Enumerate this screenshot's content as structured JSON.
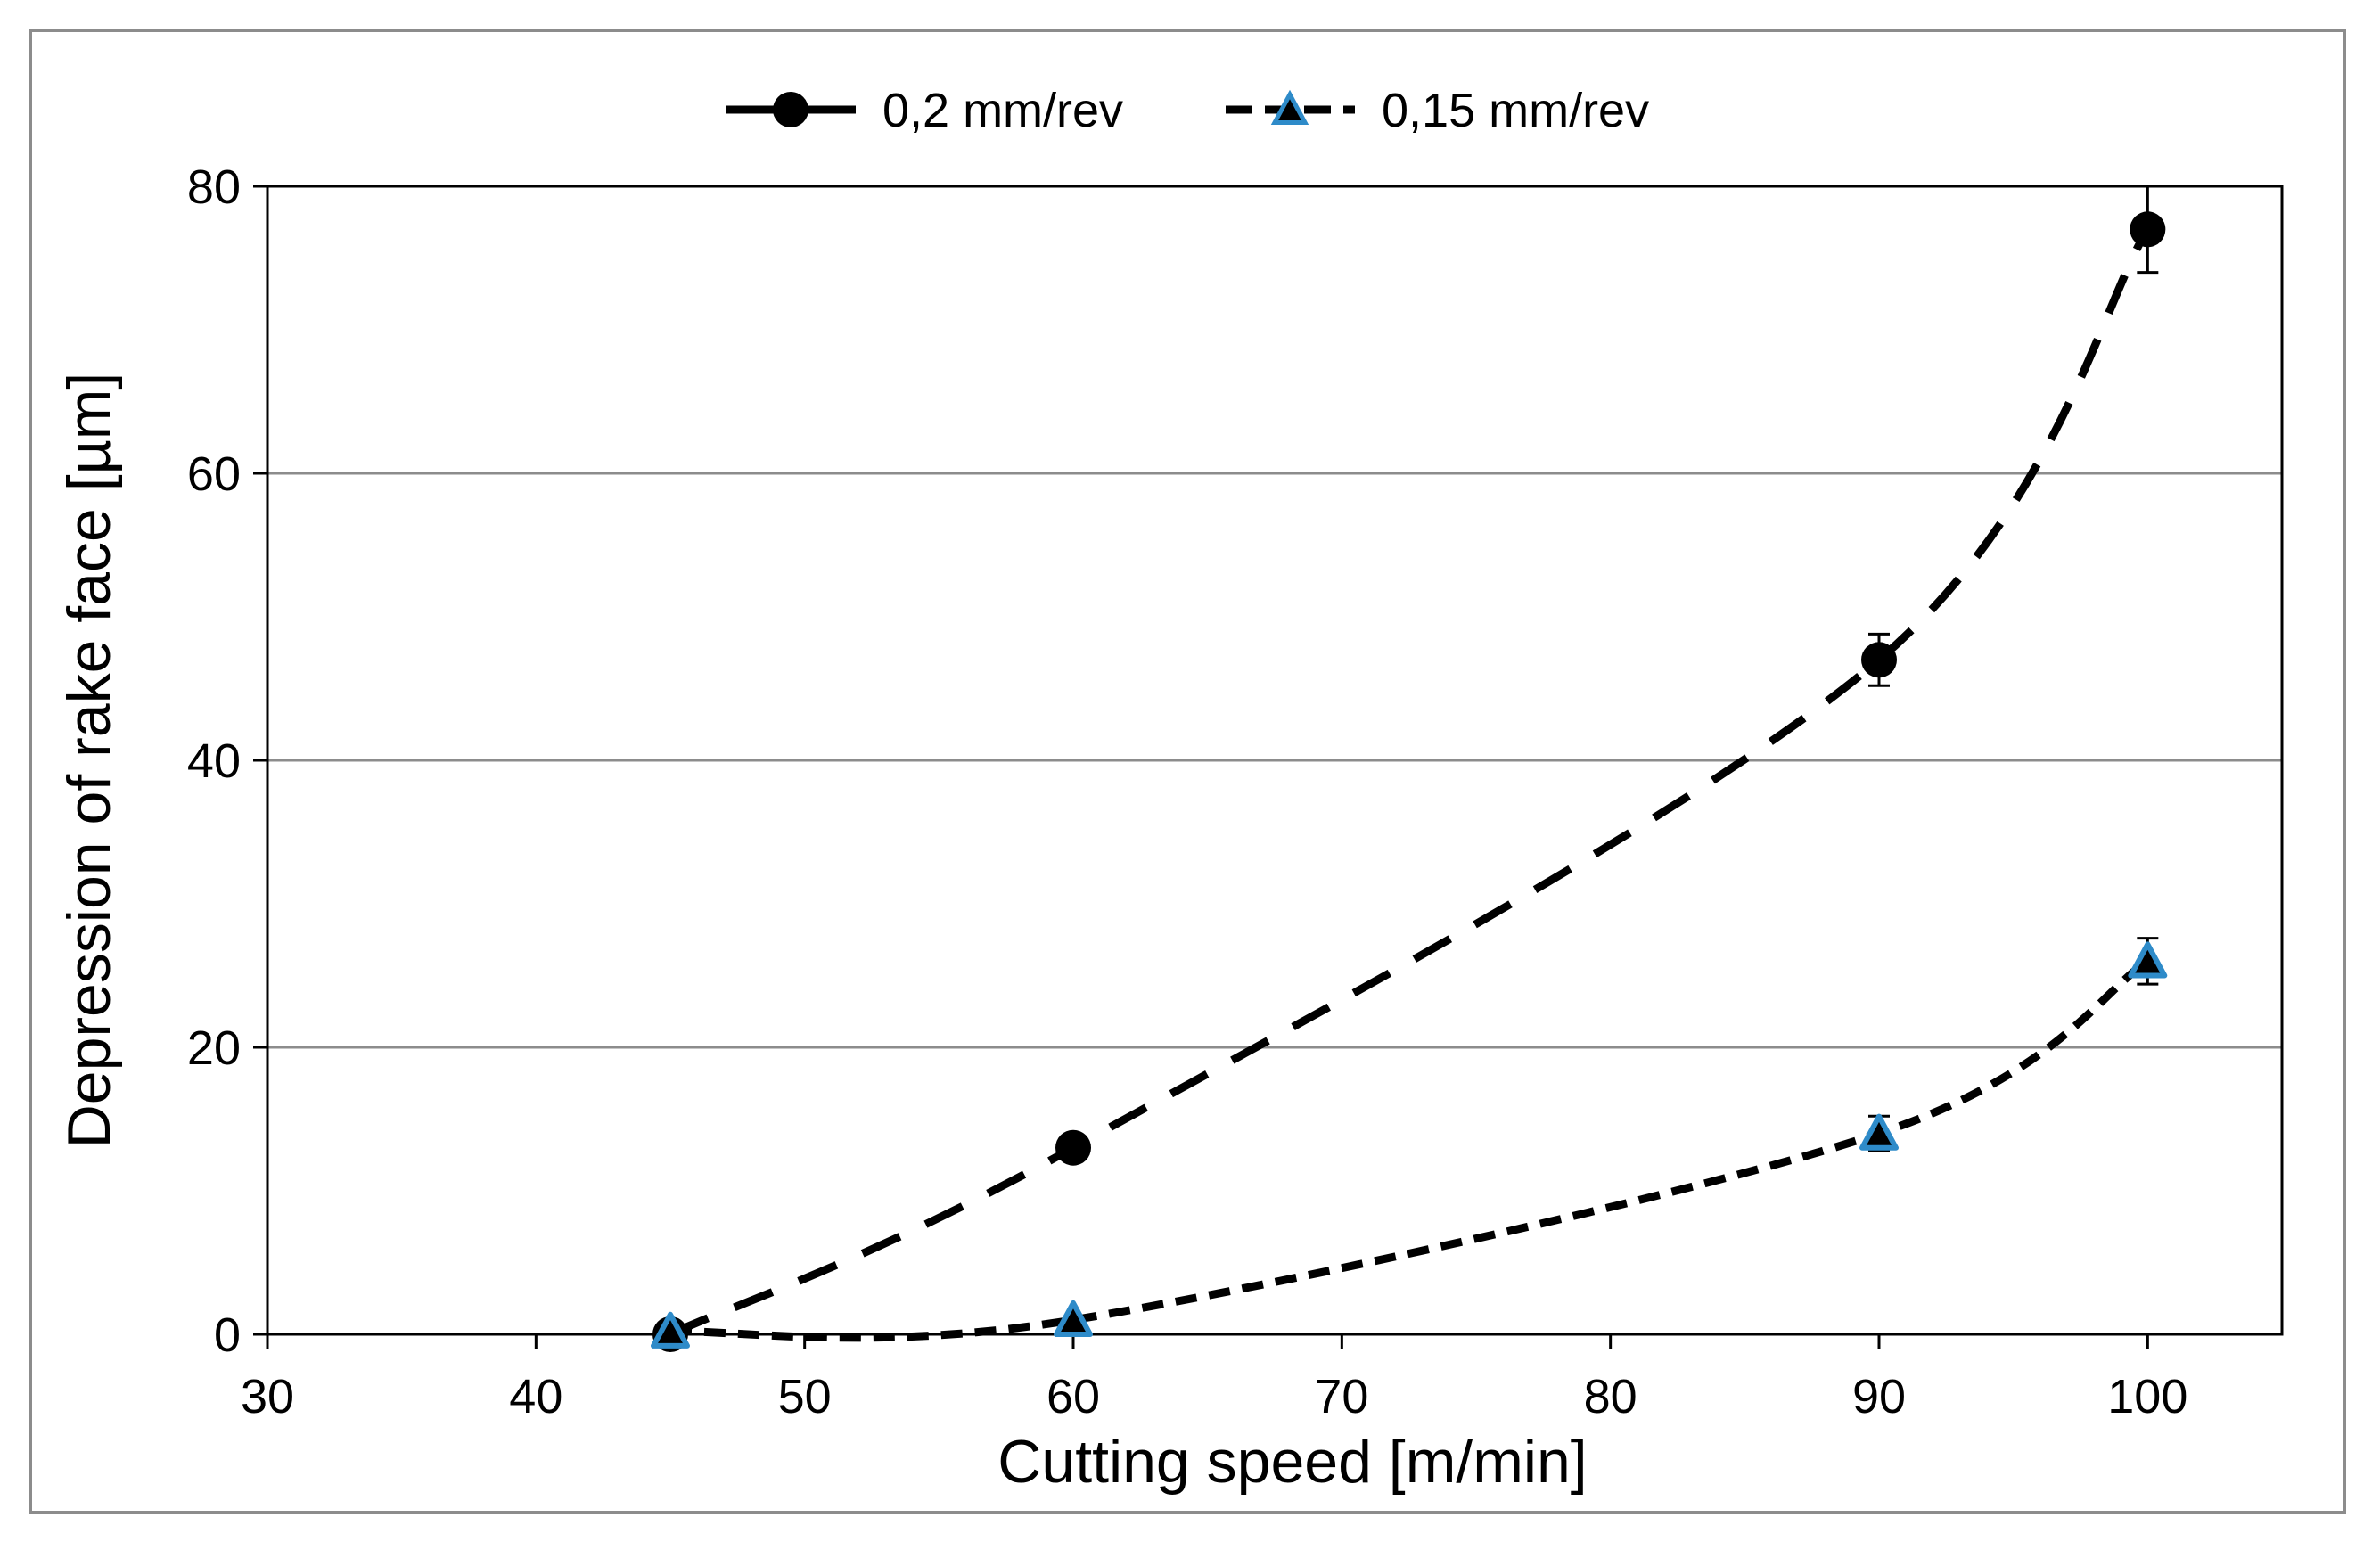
{
  "chart_data": {
    "type": "line",
    "title": "",
    "xlabel": "Cutting speed [m/min]",
    "ylabel": "Depression of rake face [µm]",
    "xlim": [
      30,
      105
    ],
    "ylim": [
      0,
      80
    ],
    "xticks": [
      30,
      40,
      50,
      60,
      70,
      80,
      90,
      100
    ],
    "yticks": [
      0,
      20,
      40,
      60,
      80
    ],
    "grid": "horizontal",
    "legend_position": "top-center",
    "series": [
      {
        "name": "0,2 mm/rev",
        "marker": "circle",
        "line_style": "dashed",
        "x": [
          45,
          60,
          90,
          100
        ],
        "y": [
          0,
          13,
          47,
          77
        ],
        "error": [
          0,
          0,
          1.8,
          3
        ],
        "color": "#000000",
        "marker_color": "#000000"
      },
      {
        "name": "0,15 mm/rev",
        "marker": "triangle",
        "line_style": "dashed",
        "x": [
          45,
          60,
          90,
          100
        ],
        "y": [
          0.2,
          1,
          14,
          26
        ],
        "error": [
          0,
          0,
          1.2,
          1.6
        ],
        "color": "#000000",
        "marker_color": "#000000",
        "marker_edge_color": "#2e8bc9"
      }
    ]
  }
}
